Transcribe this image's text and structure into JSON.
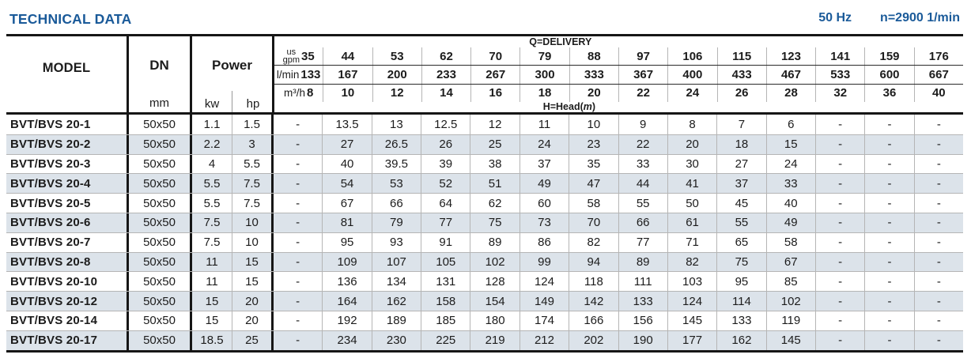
{
  "page": {
    "title": "TECHNICAL DATA",
    "frequency": "50 Hz",
    "speed": "n=2900 1/min"
  },
  "table": {
    "headers": {
      "model": "MODEL",
      "dn": "DN",
      "dn_unit": "mm",
      "power": "Power",
      "kw_unit": "kw",
      "hp_unit": "hp",
      "delivery_label": "Q=DELIVERY",
      "head_label_prefix": "H=Head(",
      "head_label_m": "m",
      "head_label_suffix": ")"
    },
    "flow_rows": [
      {
        "unit_top": "us",
        "unit_bottom": "gpm",
        "values": [
          "35",
          "44",
          "53",
          "62",
          "70",
          "79",
          "88",
          "97",
          "106",
          "115",
          "123",
          "141",
          "159",
          "176"
        ]
      },
      {
        "unit": "l/min",
        "values": [
          "133",
          "167",
          "200",
          "233",
          "267",
          "300",
          "333",
          "367",
          "400",
          "433",
          "467",
          "533",
          "600",
          "667"
        ]
      },
      {
        "unit": "m³/h",
        "values": [
          "8",
          "10",
          "12",
          "14",
          "16",
          "18",
          "20",
          "22",
          "24",
          "26",
          "28",
          "32",
          "36",
          "40"
        ]
      }
    ],
    "rows": [
      {
        "model": "BVT/BVS 20-1",
        "dn": "50x50",
        "kw": "1.1",
        "hp": "1.5",
        "head": [
          "-",
          "13.5",
          "13",
          "12.5",
          "12",
          "11",
          "10",
          "9",
          "8",
          "7",
          "6",
          "-",
          "-",
          "-"
        ]
      },
      {
        "model": "BVT/BVS 20-2",
        "dn": "50x50",
        "kw": "2.2",
        "hp": "3",
        "head": [
          "-",
          "27",
          "26.5",
          "26",
          "25",
          "24",
          "23",
          "22",
          "20",
          "18",
          "15",
          "-",
          "-",
          "-"
        ]
      },
      {
        "model": "BVT/BVS 20-3",
        "dn": "50x50",
        "kw": "4",
        "hp": "5.5",
        "head": [
          "-",
          "40",
          "39.5",
          "39",
          "38",
          "37",
          "35",
          "33",
          "30",
          "27",
          "24",
          "-",
          "-",
          "-"
        ]
      },
      {
        "model": "BVT/BVS 20-4",
        "dn": "50x50",
        "kw": "5.5",
        "hp": "7.5",
        "head": [
          "-",
          "54",
          "53",
          "52",
          "51",
          "49",
          "47",
          "44",
          "41",
          "37",
          "33",
          "-",
          "-",
          "-"
        ]
      },
      {
        "model": "BVT/BVS 20-5",
        "dn": "50x50",
        "kw": "5.5",
        "hp": "7.5",
        "head": [
          "-",
          "67",
          "66",
          "64",
          "62",
          "60",
          "58",
          "55",
          "50",
          "45",
          "40",
          "-",
          "-",
          "-"
        ]
      },
      {
        "model": "BVT/BVS 20-6",
        "dn": "50x50",
        "kw": "7.5",
        "hp": "10",
        "head": [
          "-",
          "81",
          "79",
          "77",
          "75",
          "73",
          "70",
          "66",
          "61",
          "55",
          "49",
          "-",
          "-",
          "-"
        ]
      },
      {
        "model": "BVT/BVS 20-7",
        "dn": "50x50",
        "kw": "7.5",
        "hp": "10",
        "head": [
          "-",
          "95",
          "93",
          "91",
          "89",
          "86",
          "82",
          "77",
          "71",
          "65",
          "58",
          "-",
          "-",
          "-"
        ]
      },
      {
        "model": "BVT/BVS 20-8",
        "dn": "50x50",
        "kw": "11",
        "hp": "15",
        "head": [
          "-",
          "109",
          "107",
          "105",
          "102",
          "99",
          "94",
          "89",
          "82",
          "75",
          "67",
          "-",
          "-",
          "-"
        ]
      },
      {
        "model": "BVT/BVS 20-10",
        "dn": "50x50",
        "kw": "11",
        "hp": "15",
        "head": [
          "-",
          "136",
          "134",
          "131",
          "128",
          "124",
          "118",
          "111",
          "103",
          "95",
          "85",
          "-",
          "-",
          "-"
        ]
      },
      {
        "model": "BVT/BVS 20-12",
        "dn": "50x50",
        "kw": "15",
        "hp": "20",
        "head": [
          "-",
          "164",
          "162",
          "158",
          "154",
          "149",
          "142",
          "133",
          "124",
          "114",
          "102",
          "-",
          "-",
          "-"
        ]
      },
      {
        "model": "BVT/BVS 20-14",
        "dn": "50x50",
        "kw": "15",
        "hp": "20",
        "head": [
          "-",
          "192",
          "189",
          "185",
          "180",
          "174",
          "166",
          "156",
          "145",
          "133",
          "119",
          "-",
          "-",
          "-"
        ]
      },
      {
        "model": "BVT/BVS 20-17",
        "dn": "50x50",
        "kw": "18.5",
        "hp": "25",
        "head": [
          "-",
          "234",
          "230",
          "225",
          "219",
          "212",
          "202",
          "190",
          "177",
          "162",
          "145",
          "-",
          "-",
          "-"
        ]
      }
    ]
  },
  "colors": {
    "title_blue": "#1a5a99",
    "row_shade": "#dce3ea",
    "thick_border": "#161616",
    "text": "#1c1c1c"
  }
}
